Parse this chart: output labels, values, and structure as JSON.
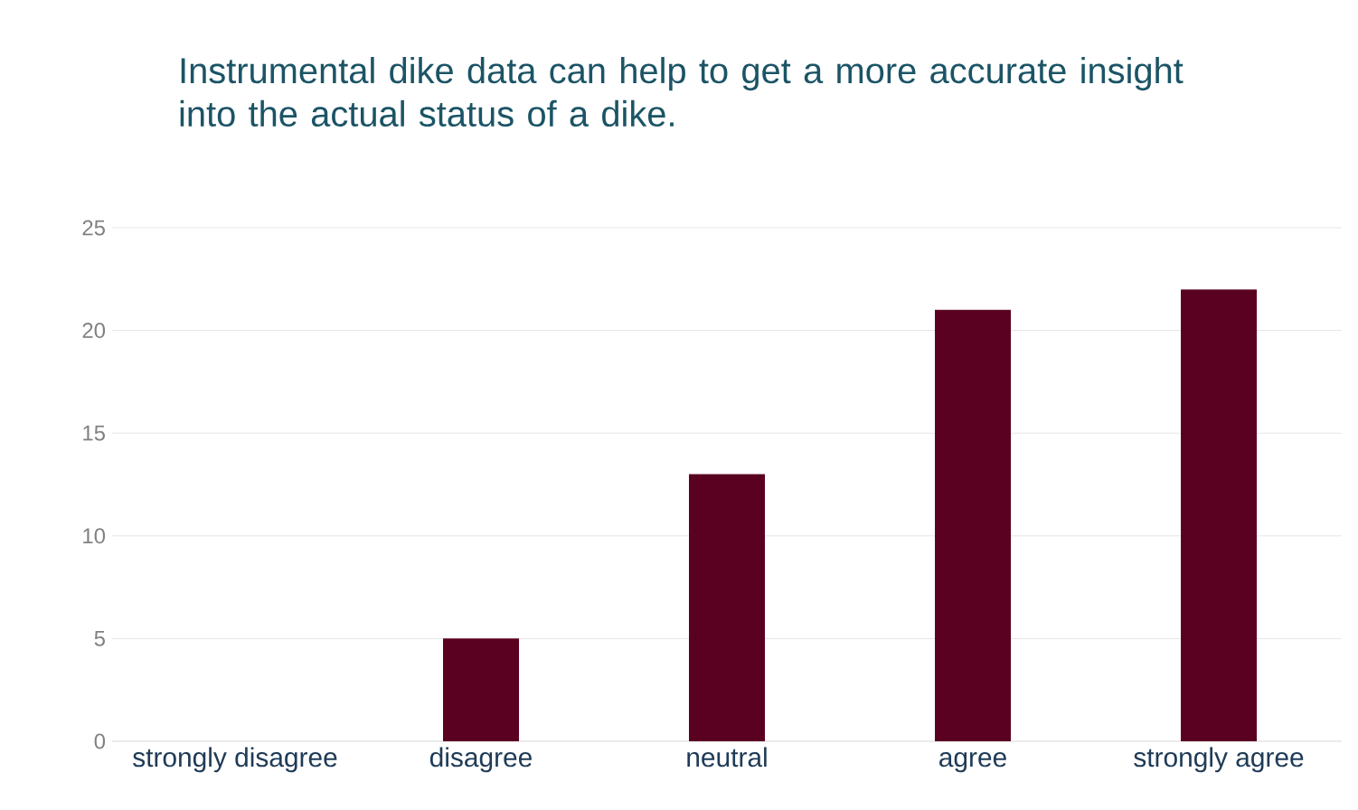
{
  "chart_data": {
    "type": "bar",
    "title": "Instrumental dike data can help to get a more accurate insight into the actual status of a dike.",
    "categories": [
      "strongly disagree",
      "disagree",
      "neutral",
      "agree",
      "strongly agree"
    ],
    "values": [
      0,
      5,
      13,
      21,
      22
    ],
    "color": "#5a0020",
    "ylim": [
      0,
      25
    ],
    "yticks": [
      0,
      5,
      10,
      15,
      20,
      25
    ],
    "grid": "y"
  }
}
